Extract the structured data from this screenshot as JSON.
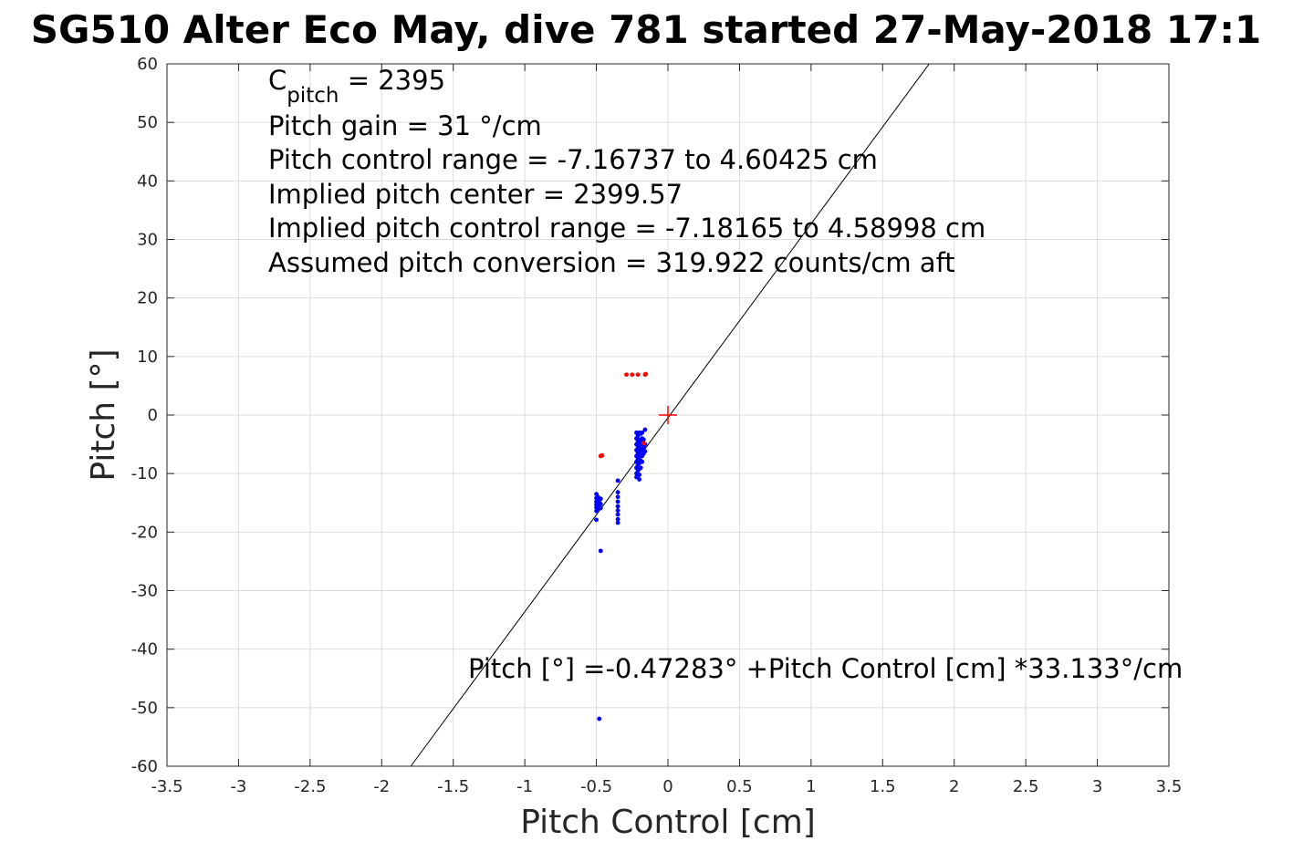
{
  "chart_data": {
    "type": "scatter",
    "title": "SG510 Alter Eco May, dive 781 started 27-May-2018 17:1",
    "xlabel": "Pitch Control [cm]",
    "ylabel": "Pitch [°]",
    "xlim": [
      -3.5,
      3.5
    ],
    "ylim": [
      -60,
      60
    ],
    "xticks": [
      -3.5,
      -3,
      -2.5,
      -2,
      -1.5,
      -1,
      -0.5,
      0,
      0.5,
      1,
      1.5,
      2,
      2.5,
      3,
      3.5
    ],
    "xtick_labels": [
      "-3.5",
      "-3",
      "-2.5",
      "-2",
      "-1.5",
      "-1",
      "-0.5",
      "0",
      "0.5",
      "1",
      "1.5",
      "2",
      "2.5",
      "3",
      "3.5"
    ],
    "yticks": [
      -60,
      -50,
      -40,
      -30,
      -20,
      -10,
      0,
      10,
      20,
      30,
      40,
      50,
      60
    ],
    "ytick_labels": [
      "-60",
      "-50",
      "-40",
      "-30",
      "-20",
      "-10",
      "0",
      "10",
      "20",
      "30",
      "40",
      "50",
      "60"
    ],
    "grid": true,
    "annotations": {
      "c_pitch_main": "C",
      "c_pitch_sub": "pitch",
      "c_pitch_value": " = 2395",
      "lines": [
        "Pitch gain = 31 °/cm",
        "Pitch control range = -7.16737 to 4.60425 cm",
        "Implied pitch center = 2399.57",
        "Implied pitch control range = -7.18165 to 4.58998 cm",
        "Assumed pitch conversion = 319.922 counts/cm aft"
      ],
      "fit_equation": "Pitch [°] =-0.47283° +Pitch Control [cm] *33.133°/cm"
    },
    "fit_line": {
      "intercept": -0.47283,
      "slope": 33.133
    },
    "center_marker": {
      "x": 0,
      "y": 0,
      "color": "#ff0000"
    },
    "series": [
      {
        "color": "#0000ff",
        "points": [
          [
            -0.5,
            -13.5
          ],
          [
            -0.5,
            -14.2
          ],
          [
            -0.5,
            -14.8
          ],
          [
            -0.5,
            -15.3
          ],
          [
            -0.5,
            -15.8
          ],
          [
            -0.5,
            -16.4
          ],
          [
            -0.49,
            -14.0
          ],
          [
            -0.49,
            -15.0
          ],
          [
            -0.49,
            -16.0
          ],
          [
            -0.48,
            -14.6
          ],
          [
            -0.48,
            -15.5
          ],
          [
            -0.47,
            -14.3
          ],
          [
            -0.47,
            -15.2
          ],
          [
            -0.47,
            -15.9
          ],
          [
            -0.5,
            -17.9
          ],
          [
            -0.47,
            -23.2
          ],
          [
            -0.48,
            -51.9
          ],
          [
            -0.35,
            -11.2
          ],
          [
            -0.35,
            -13.2
          ],
          [
            -0.35,
            -14.0
          ],
          [
            -0.35,
            -14.8
          ],
          [
            -0.35,
            -15.6
          ],
          [
            -0.35,
            -16.3
          ],
          [
            -0.35,
            -17.0
          ],
          [
            -0.35,
            -17.8
          ],
          [
            -0.35,
            -18.4
          ],
          [
            -0.22,
            -3.0
          ],
          [
            -0.22,
            -4.0
          ],
          [
            -0.22,
            -5.0
          ],
          [
            -0.22,
            -6.0
          ],
          [
            -0.22,
            -7.0
          ],
          [
            -0.22,
            -8.0
          ],
          [
            -0.22,
            -9.0
          ],
          [
            -0.22,
            -10.0
          ],
          [
            -0.22,
            -10.6
          ],
          [
            -0.21,
            -3.5
          ],
          [
            -0.21,
            -4.5
          ],
          [
            -0.21,
            -5.5
          ],
          [
            -0.21,
            -6.5
          ],
          [
            -0.21,
            -7.5
          ],
          [
            -0.21,
            -8.5
          ],
          [
            -0.21,
            -9.5
          ],
          [
            -0.21,
            -10.3
          ],
          [
            -0.2,
            -3.0
          ],
          [
            -0.2,
            -4.2
          ],
          [
            -0.2,
            -5.2
          ],
          [
            -0.2,
            -6.2
          ],
          [
            -0.2,
            -7.2
          ],
          [
            -0.2,
            -8.2
          ],
          [
            -0.2,
            -9.2
          ],
          [
            -0.2,
            -10.2
          ],
          [
            -0.2,
            -11.0
          ],
          [
            -0.19,
            -3.2
          ],
          [
            -0.19,
            -4.6
          ],
          [
            -0.19,
            -5.8
          ],
          [
            -0.19,
            -6.8
          ],
          [
            -0.19,
            -7.8
          ],
          [
            -0.19,
            -9.0
          ],
          [
            -0.18,
            -3.0
          ],
          [
            -0.18,
            -4.0
          ],
          [
            -0.18,
            -5.0
          ],
          [
            -0.18,
            -6.0
          ],
          [
            -0.18,
            -7.0
          ],
          [
            -0.18,
            -8.0
          ],
          [
            -0.17,
            -4.2
          ],
          [
            -0.17,
            -5.6
          ],
          [
            -0.17,
            -6.6
          ],
          [
            -0.16,
            -2.5
          ],
          [
            -0.16,
            -5.0
          ],
          [
            -0.16,
            -6.2
          ]
        ]
      },
      {
        "color": "#ff0000",
        "points": [
          [
            -0.46,
            -6.9
          ],
          [
            -0.47,
            -7.0
          ],
          [
            -0.29,
            6.9
          ],
          [
            -0.25,
            6.9
          ],
          [
            -0.21,
            6.9
          ],
          [
            -0.16,
            6.9
          ],
          [
            -0.155,
            7.0
          ],
          [
            -0.17,
            -4.8
          ]
        ]
      }
    ]
  }
}
